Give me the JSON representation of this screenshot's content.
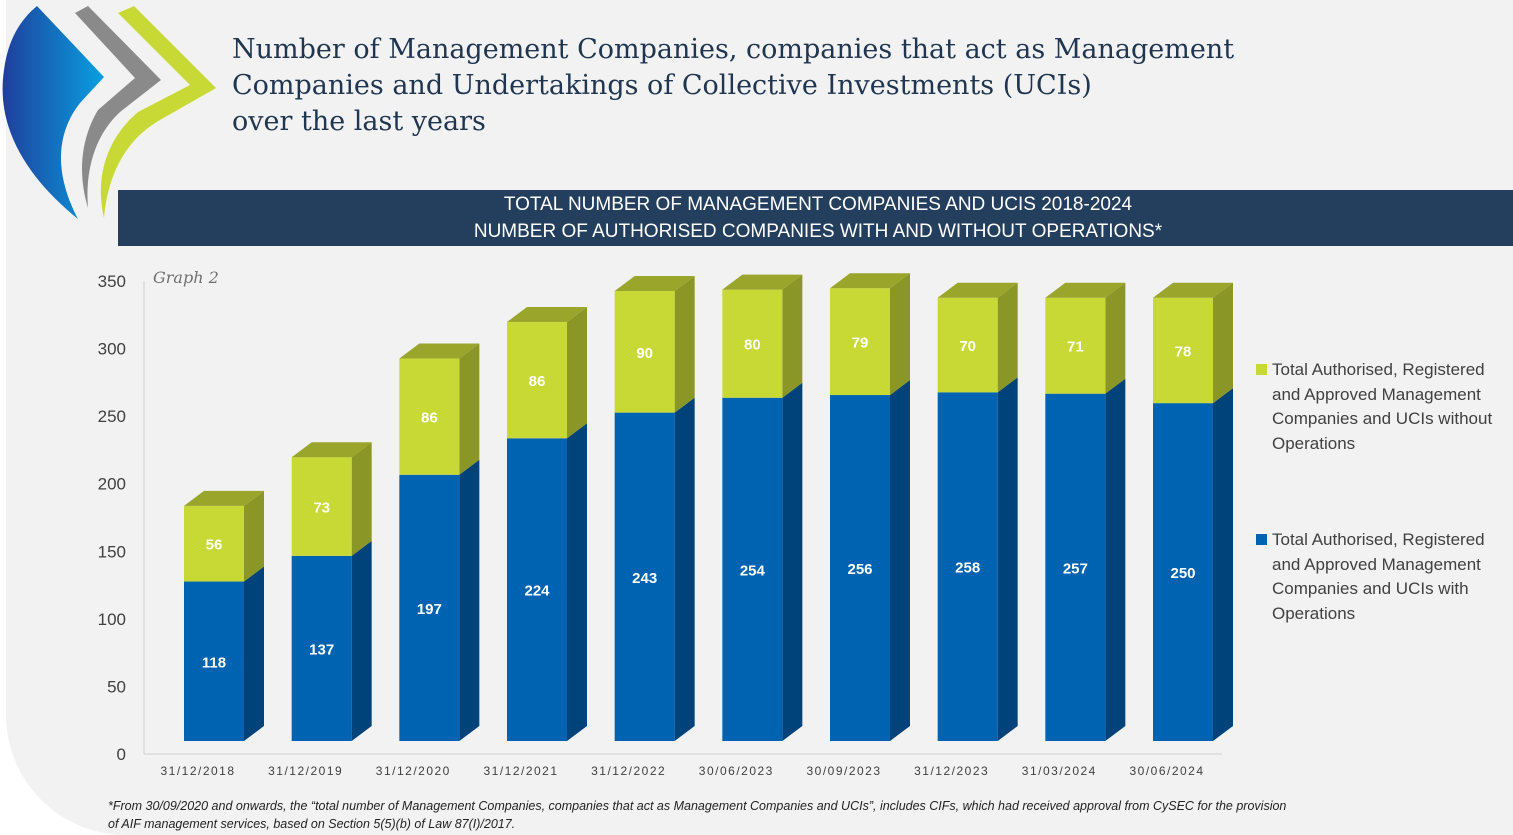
{
  "header": {
    "title_lines": [
      "Number of Management Companies, companies that act as Management",
      "Companies and Undertakings of Collective Investments (UCIs)",
      "over the last years"
    ]
  },
  "banner": {
    "line1": "TOTAL NUMBER OF MANAGEMENT COMPANIES AND UCIS 2018-2024",
    "line2": "NUMBER OF AUTHORISED COMPANIES WITH AND WITHOUT OPERATIONS*"
  },
  "chart_data": {
    "type": "bar",
    "stacked": true,
    "style": "3d",
    "annotation": "Graph 2",
    "categories": [
      "31/12/2018",
      "31/12/2019",
      "31/12/2020",
      "31/12/2021",
      "31/12/2022",
      "30/06/2023",
      "30/09/2023",
      "31/12/2023",
      "31/03/2024",
      "30/06/2024"
    ],
    "series": [
      {
        "name": "Total Authorised, Registered and Approved Management Companies and UCIs with Operations",
        "color": "#0063b1",
        "values": [
          118,
          137,
          197,
          224,
          243,
          254,
          256,
          258,
          257,
          250
        ]
      },
      {
        "name": "Total Authorised, Registered and Approved Management Companies and UCIs without Operations",
        "color": "#c8d935",
        "values": [
          56,
          73,
          86,
          86,
          90,
          80,
          79,
          70,
          71,
          78
        ]
      }
    ],
    "ylim": [
      0,
      350
    ],
    "yticks": [
      0,
      50,
      100,
      150,
      200,
      250,
      300,
      350
    ],
    "grid": false,
    "legend_position": "right"
  },
  "footnote": {
    "line1": "*From 30/09/2020 and onwards, the “total number of Management Companies, companies that act as Management Companies and UCIs”, includes CIFs, which had received approval from CySEC for the provision",
    "line2": "of AIF management services, based on Section 5(5)(b) of Law 87(I)/2017."
  }
}
